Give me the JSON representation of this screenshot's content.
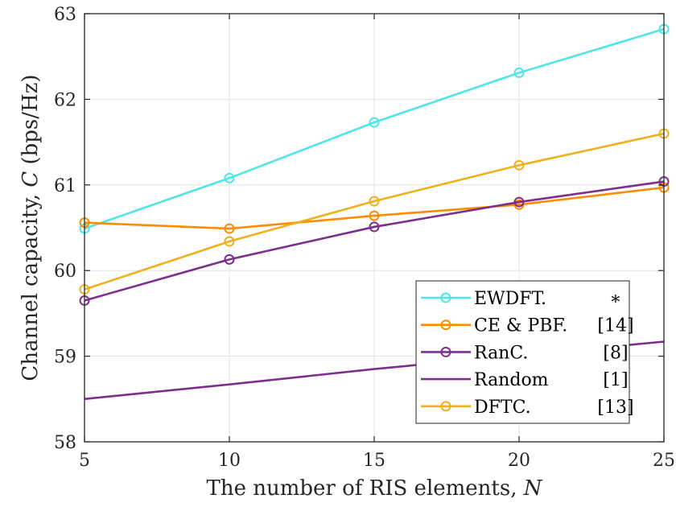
{
  "chart_data": {
    "type": "line",
    "xlabel": "The number of RIS elements, ",
    "xlabel_var": "N",
    "ylabel": "Channel capacity, ",
    "ylabel_var": "C",
    "ylabel_unit": " (bps/Hz)",
    "x": [
      5,
      10,
      15,
      20,
      25
    ],
    "xlim": [
      5,
      25
    ],
    "ylim": [
      58,
      63
    ],
    "xticks": [
      5,
      10,
      15,
      20,
      25
    ],
    "yticks": [
      58,
      59,
      60,
      61,
      62,
      63
    ],
    "grid": true,
    "legend_position": "bottom-right",
    "series": [
      {
        "name": "EWDFT.",
        "ref": "∗",
        "color": "#4FE6E6",
        "marker": "circle",
        "values": [
          60.49,
          61.08,
          61.73,
          62.31,
          62.82
        ]
      },
      {
        "name": "CE & PBF.",
        "ref": "[14]",
        "color": "#FF8C00",
        "marker": "circle",
        "values": [
          60.56,
          60.49,
          60.64,
          60.77,
          60.97
        ]
      },
      {
        "name": "RanC.",
        "ref": "[8]",
        "color": "#7E2F8E",
        "marker": "circle",
        "values": [
          59.65,
          60.13,
          60.51,
          60.8,
          61.04
        ]
      },
      {
        "name": "Random",
        "ref": "[1]",
        "color": "#7E2F8E",
        "marker": "none",
        "values": [
          58.5,
          58.67,
          58.85,
          59.01,
          59.17
        ]
      },
      {
        "name": "DFTC.",
        "ref": "[13]",
        "color": "#EDB120",
        "marker": "circle",
        "values": [
          59.78,
          60.34,
          60.81,
          61.23,
          61.6
        ]
      }
    ]
  }
}
